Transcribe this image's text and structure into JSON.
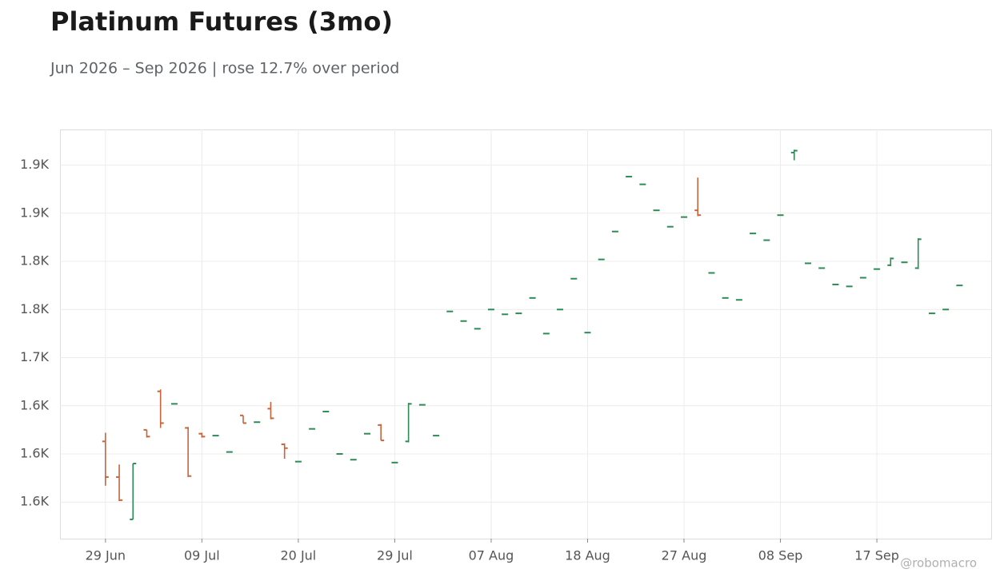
{
  "chart_data": {
    "type": "ohlc",
    "title": "Platinum Futures (3mo)",
    "subtitle": "Jun 2026 – Sep 2026 | rose 12.7% over period",
    "watermark": "@robomacro",
    "categories": [
      "29 Jun",
      null,
      null,
      null,
      null,
      null,
      null,
      "09 Jul",
      null,
      null,
      null,
      null,
      null,
      null,
      "20 Jul",
      null,
      null,
      null,
      null,
      null,
      null,
      "29 Jul",
      null,
      null,
      null,
      null,
      null,
      null,
      "07 Aug",
      null,
      null,
      null,
      null,
      null,
      null,
      "18 Aug",
      null,
      null,
      null,
      null,
      null,
      null,
      "27 Aug",
      null,
      null,
      null,
      null,
      null,
      null,
      "08 Sep",
      null,
      null,
      null,
      null,
      null,
      null,
      "17 Sep",
      null,
      null,
      null,
      null,
      null,
      null
    ],
    "open": [
      1613,
      1576,
      1532,
      1625,
      1665,
      1652,
      1627,
      1621,
      1619,
      1602,
      1640,
      1633,
      1647,
      1610,
      1592,
      1626,
      1644,
      1600,
      1594,
      1621,
      1630,
      1591,
      1613,
      1651,
      1619,
      1748,
      1738,
      1730,
      1750,
      1745,
      1746,
      1762,
      1725,
      1750,
      1782,
      1726,
      1802,
      1831,
      1888,
      1880,
      1853,
      1836,
      1846,
      1853,
      1788,
      1762,
      1760,
      1829,
      1822,
      1848,
      1913,
      1798,
      1793,
      1776,
      1774,
      1783,
      1792,
      1796,
      1799,
      1793,
      1746,
      1750,
      1775
    ],
    "high": [
      1622,
      1589,
      1590,
      1625,
      1667,
      1652,
      1628,
      1622,
      1619,
      1602,
      1640,
      1633,
      1654,
      1611,
      1592,
      1626,
      1644,
      1600,
      1594,
      1621,
      1631,
      1591,
      1653,
      1651,
      1619,
      1748,
      1738,
      1730,
      1750,
      1745,
      1746,
      1762,
      1725,
      1750,
      1782,
      1726,
      1802,
      1831,
      1888,
      1880,
      1853,
      1836,
      1846,
      1887,
      1788,
      1762,
      1760,
      1829,
      1822,
      1848,
      1916,
      1798,
      1793,
      1776,
      1774,
      1783,
      1792,
      1804,
      1799,
      1824,
      1746,
      1750,
      1775
    ],
    "low": [
      1567,
      1551,
      1532,
      1617,
      1627,
      1652,
      1576,
      1617,
      1619,
      1602,
      1632,
      1633,
      1636,
      1595,
      1592,
      1626,
      1644,
      1600,
      1594,
      1621,
      1614,
      1591,
      1612,
      1651,
      1619,
      1748,
      1738,
      1730,
      1750,
      1745,
      1746,
      1762,
      1725,
      1750,
      1782,
      1726,
      1802,
      1831,
      1888,
      1880,
      1853,
      1836,
      1846,
      1847,
      1788,
      1762,
      1760,
      1829,
      1822,
      1848,
      1905,
      1798,
      1793,
      1776,
      1774,
      1783,
      1792,
      1795,
      1799,
      1792,
      1746,
      1750,
      1775
    ],
    "close": [
      1576,
      1552,
      1590,
      1618,
      1632,
      1652,
      1577,
      1618,
      1619,
      1602,
      1632,
      1633,
      1637,
      1606,
      1592,
      1626,
      1644,
      1600,
      1594,
      1621,
      1614,
      1591,
      1652,
      1651,
      1619,
      1748,
      1738,
      1730,
      1750,
      1745,
      1746,
      1762,
      1725,
      1750,
      1782,
      1726,
      1802,
      1831,
      1888,
      1880,
      1853,
      1836,
      1846,
      1848,
      1788,
      1762,
      1760,
      1829,
      1822,
      1848,
      1915,
      1798,
      1793,
      1776,
      1774,
      1783,
      1792,
      1803,
      1799,
      1823,
      1746,
      1750,
      1775
    ],
    "up_color": "#2e8b57",
    "down_color": "#c8643c",
    "ylim": [
      1512,
      1937
    ],
    "yticks": [
      {
        "value": 1550,
        "label": "1.6K"
      },
      {
        "value": 1600,
        "label": "1.6K"
      },
      {
        "value": 1650,
        "label": "1.6K"
      },
      {
        "value": 1700,
        "label": "1.7K"
      },
      {
        "value": 1750,
        "label": "1.8K"
      },
      {
        "value": 1800,
        "label": "1.8K"
      },
      {
        "value": 1850,
        "label": "1.9K"
      },
      {
        "value": 1900,
        "label": "1.9K"
      }
    ],
    "grid": true
  }
}
